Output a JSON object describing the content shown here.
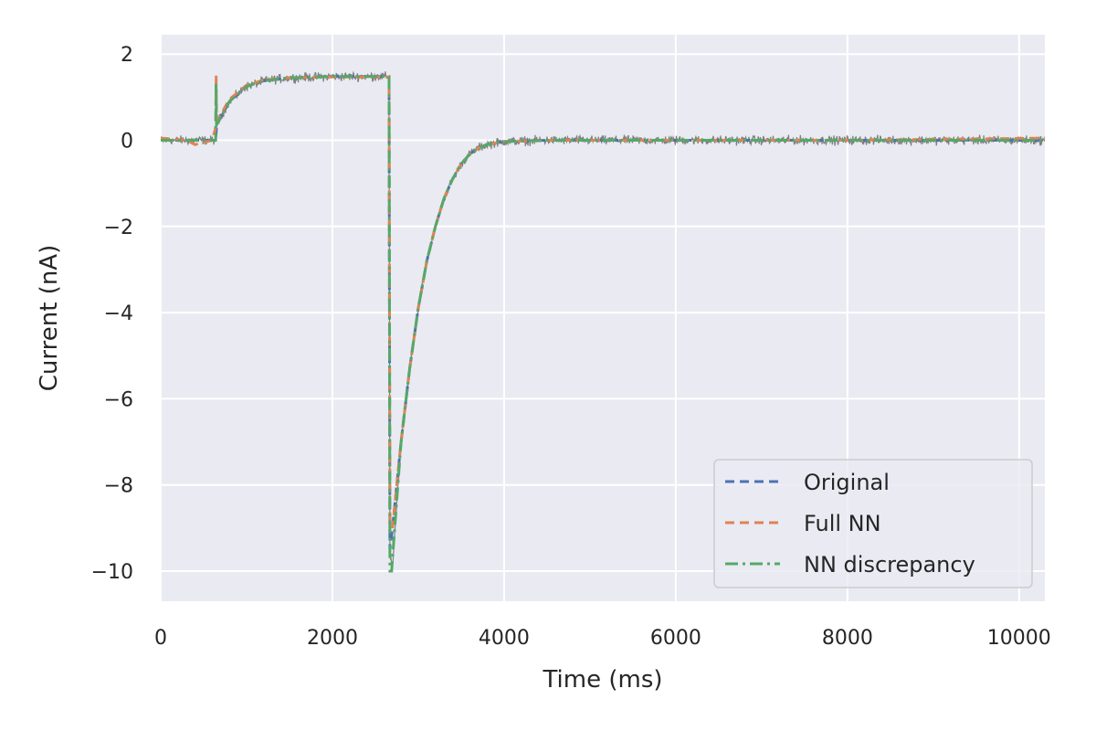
{
  "chart_data": {
    "type": "line",
    "title": "",
    "xlabel": "Time (ms)",
    "ylabel": "Current (nA)",
    "xlim": [
      0,
      10300
    ],
    "ylim": [
      -10.7,
      2.45
    ],
    "xticks": [
      0,
      2000,
      4000,
      6000,
      8000,
      10000
    ],
    "xtick_labels": [
      "0",
      "2000",
      "4000",
      "6000",
      "8000",
      "10000"
    ],
    "yticks": [
      2,
      0,
      -2,
      -4,
      -6,
      -8,
      -10
    ],
    "ytick_labels": [
      "2",
      "0",
      "−2",
      "−4",
      "−6",
      "−8",
      "−10"
    ],
    "grid": true,
    "background": "#EAEAF2",
    "legend_position": "lower-right",
    "noisy_data": {
      "color": "#808080",
      "noise_amplitude": 0.15,
      "x": [
        0,
        400,
        640,
        650,
        700,
        800,
        1000,
        1200,
        1500,
        2000,
        2500,
        2660,
        2670,
        2700,
        2800,
        2900,
        3000,
        3100,
        3200,
        3300,
        3400,
        3500,
        3600,
        3700,
        3800,
        4000,
        4500,
        5000,
        6000,
        8000,
        10300
      ],
      "y": [
        0.0,
        0.0,
        0.0,
        0.35,
        0.55,
        0.9,
        1.25,
        1.38,
        1.45,
        1.48,
        1.48,
        1.48,
        -9.6,
        -9.9,
        -7.0,
        -5.3,
        -3.9,
        -2.8,
        -2.0,
        -1.35,
        -0.9,
        -0.55,
        -0.32,
        -0.18,
        -0.1,
        -0.03,
        0.0,
        0.0,
        0.0,
        0.0,
        0.0
      ]
    },
    "series": [
      {
        "name": "Original",
        "color": "#4C72B0",
        "style": "dashed",
        "x": [
          0,
          640,
          650,
          700,
          800,
          1000,
          1200,
          1500,
          2000,
          2500,
          2660,
          2670,
          2700,
          2800,
          2900,
          3000,
          3100,
          3200,
          3300,
          3400,
          3500,
          3600,
          3700,
          3800,
          4000,
          4500,
          5000,
          6000,
          8000,
          10300
        ],
        "y": [
          0.0,
          0.0,
          0.32,
          0.55,
          0.9,
          1.25,
          1.38,
          1.45,
          1.48,
          1.48,
          1.48,
          -9.5,
          -9.0,
          -7.0,
          -5.3,
          -3.9,
          -2.8,
          -2.0,
          -1.35,
          -0.9,
          -0.55,
          -0.32,
          -0.18,
          -0.1,
          -0.03,
          0.0,
          0.0,
          0.0,
          0.0,
          0.0
        ]
      },
      {
        "name": "Full NN",
        "color": "#DD8452",
        "style": "dashed",
        "x": [
          0,
          300,
          400,
          500,
          600,
          640,
          645,
          650,
          700,
          800,
          1000,
          1200,
          1500,
          2000,
          2500,
          2660,
          2670,
          2700,
          2800,
          2900,
          3000,
          3100,
          3200,
          3300,
          3400,
          3500,
          3600,
          3700,
          3800,
          4000,
          4500,
          5000,
          6000,
          8000,
          10300
        ],
        "y": [
          0.05,
          0.0,
          -0.1,
          -0.05,
          0.0,
          0.3,
          1.5,
          0.45,
          0.6,
          0.95,
          1.28,
          1.4,
          1.45,
          1.47,
          1.47,
          1.47,
          -8.8,
          -9.0,
          -7.0,
          -5.3,
          -3.9,
          -2.8,
          -2.0,
          -1.35,
          -0.9,
          -0.55,
          -0.32,
          -0.18,
          -0.1,
          -0.03,
          0.0,
          0.0,
          0.0,
          0.0,
          0.05
        ]
      },
      {
        "name": "NN discrepancy",
        "color": "#55A868",
        "style": "dashdot",
        "x": [
          0,
          640,
          645,
          650,
          700,
          800,
          1000,
          1200,
          1500,
          2000,
          2500,
          2660,
          2670,
          2690,
          2700,
          2800,
          2900,
          3000,
          3100,
          3200,
          3300,
          3400,
          3500,
          3600,
          3700,
          3800,
          4000,
          4500,
          5000,
          6000,
          8000,
          10300
        ],
        "y": [
          0.0,
          0.0,
          1.3,
          0.35,
          0.55,
          0.9,
          1.25,
          1.38,
          1.45,
          1.48,
          1.48,
          1.48,
          -10.0,
          -10.0,
          -9.7,
          -7.0,
          -5.3,
          -3.9,
          -2.8,
          -2.0,
          -1.35,
          -0.9,
          -0.55,
          -0.32,
          -0.18,
          -0.1,
          -0.03,
          0.0,
          0.0,
          0.0,
          0.0,
          0.0
        ]
      }
    ]
  }
}
